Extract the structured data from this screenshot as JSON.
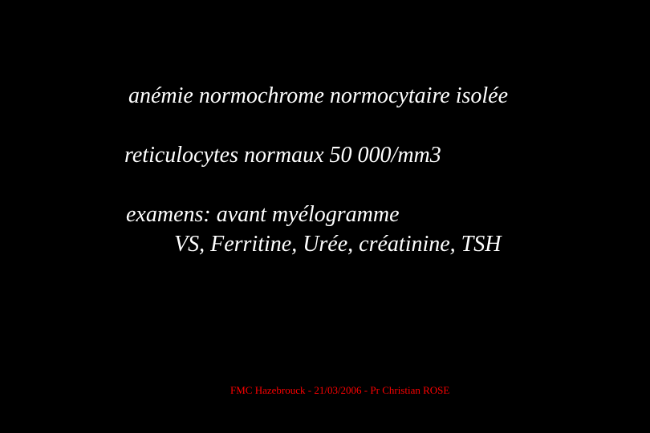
{
  "slide": {
    "background_color": "#000000",
    "text_color": "#ffffff",
    "font_family": "Times New Roman",
    "font_style": "italic",
    "lines": {
      "title": "anémie normochrome normocytaire isolée",
      "reticulocytes": "reticulocytes normaux 50 000/mm3",
      "examens_label": "examens: avant myélogramme",
      "examens_list": "VS, Ferritine, Urée, créatinine, TSH"
    },
    "title_fontsize": 28,
    "body_fontsize": 28,
    "footer": {
      "text": "FMC Hazebrouck - 21/03/2006 - Pr Christian ROSE",
      "color": "#ff0000",
      "fontsize": 13,
      "font_style": "normal"
    }
  }
}
